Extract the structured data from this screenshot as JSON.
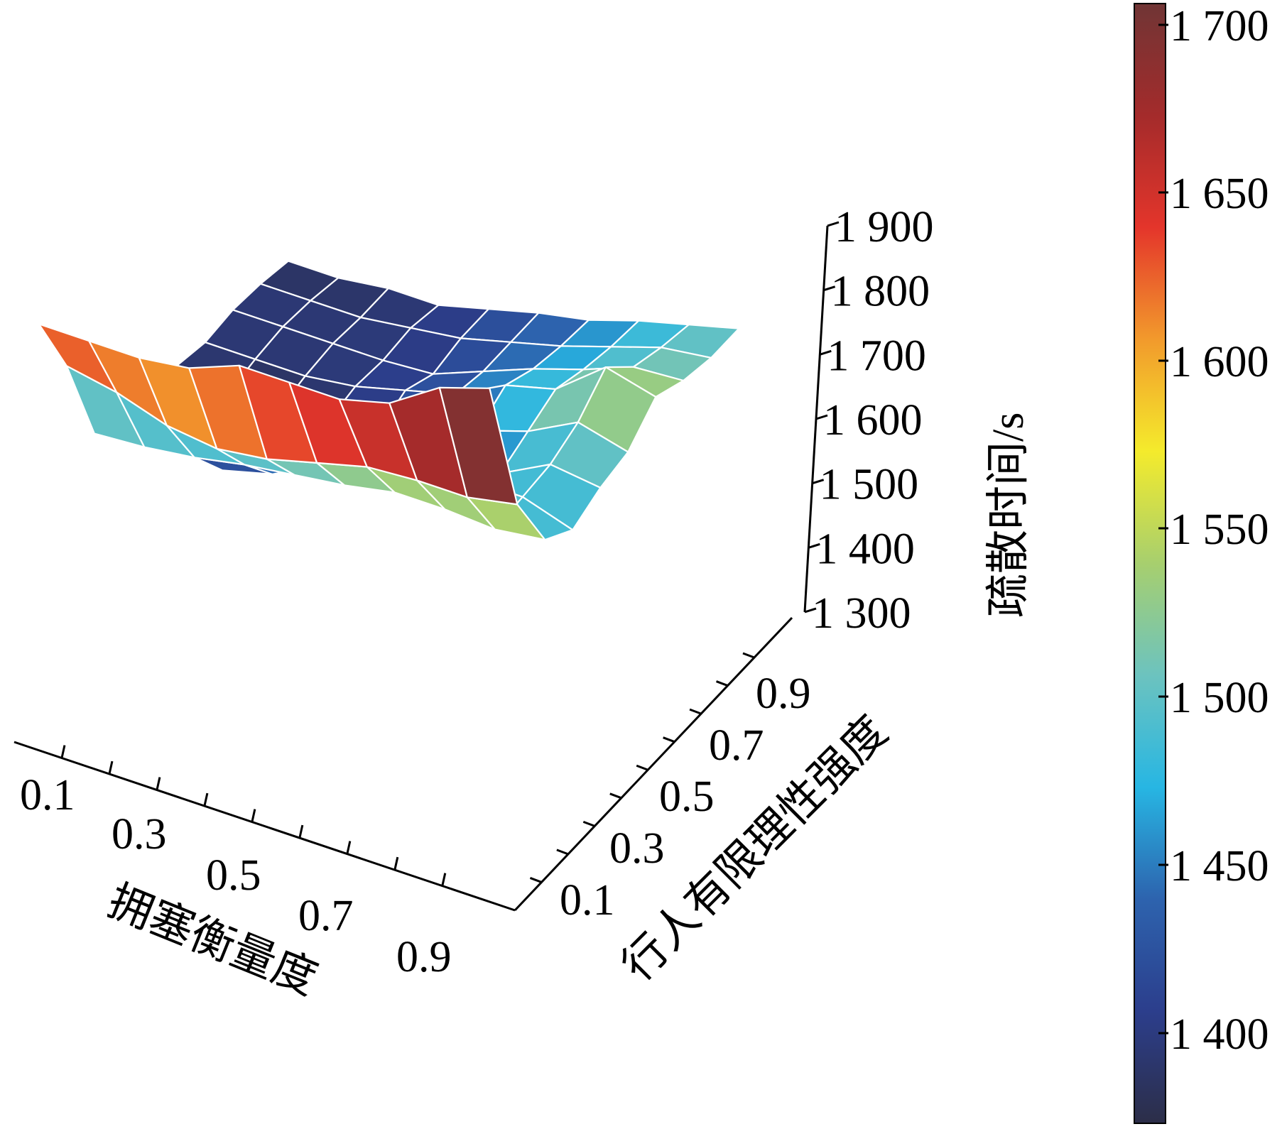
{
  "chart_data": {
    "type": "surface",
    "x_axis": {
      "label": "拥塞衡量度",
      "values": [
        0.1,
        0.2,
        0.3,
        0.4,
        0.5,
        0.6,
        0.7,
        0.8,
        0.9,
        1.0
      ],
      "tick_labels": [
        "0.1",
        "0.3",
        "0.5",
        "0.7",
        "0.9"
      ]
    },
    "y_axis": {
      "label": "行人有限理性强度",
      "values": [
        0.1,
        0.2,
        0.3,
        0.4,
        0.5,
        0.6,
        0.7,
        0.8,
        0.9,
        1.0
      ],
      "tick_labels": [
        "0.1",
        "0.3",
        "0.5",
        "0.7",
        "0.9"
      ]
    },
    "z_axis": {
      "label": "疏散时间/s",
      "range": [
        1300,
        1900
      ],
      "tick_labels": [
        "1 300",
        "1 400",
        "1 500",
        "1 600",
        "1 700",
        "1 800",
        "1 900"
      ]
    },
    "colorbar": {
      "range": [
        1370,
        1715
      ],
      "tick_labels": [
        "1 400",
        "1 450",
        "1 500",
        "1 550",
        "1 600",
        "1 650",
        "1 700"
      ],
      "colormap": [
        "#2c2e48",
        "#2c3e8c",
        "#2d63ae",
        "#27b6e3",
        "#6cc3bf",
        "#a7cf6e",
        "#f4eb2c",
        "#f29a2c",
        "#e4352b",
        "#a42b2b",
        "#703535"
      ]
    },
    "z_values": [
      [
        1690,
        1690,
        1690,
        1700,
        1730,
        1730,
        1730,
        1750,
        1800,
        1825
      ],
      [
        1580,
        1565,
        1540,
        1530,
        1540,
        1560,
        1580,
        1585,
        1585,
        1600
      ],
      [
        1430,
        1435,
        1445,
        1460,
        1470,
        1480,
        1495,
        1495,
        1490,
        1500
      ],
      [
        1410,
        1400,
        1380,
        1400,
        1440,
        1450,
        1445,
        1495,
        1495,
        1470
      ],
      [
        1400,
        1380,
        1370,
        1380,
        1390,
        1440,
        1450,
        1460,
        1500,
        1490
      ],
      [
        1400,
        1380,
        1380,
        1390,
        1400,
        1420,
        1455,
        1480,
        1520,
        1500
      ],
      [
        1390,
        1390,
        1390,
        1400,
        1420,
        1440,
        1480,
        1500,
        1560,
        1540
      ],
      [
        1395,
        1395,
        1395,
        1395,
        1400,
        1430,
        1460,
        1485,
        1515,
        1520
      ],
      [
        1390,
        1390,
        1390,
        1400,
        1410,
        1430,
        1450,
        1475,
        1500,
        1510
      ],
      [
        1380,
        1380,
        1390,
        1390,
        1410,
        1430,
        1445,
        1470,
        1490,
        1510
      ]
    ]
  }
}
